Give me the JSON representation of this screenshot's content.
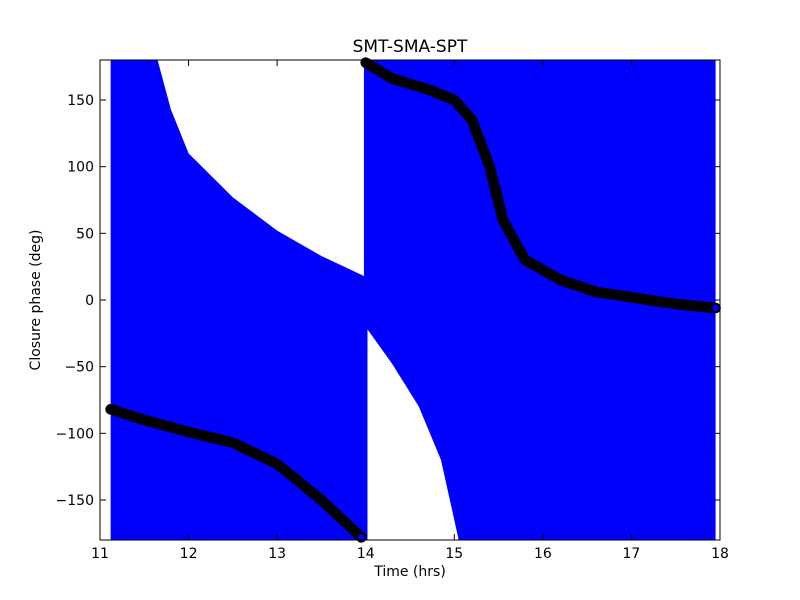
{
  "chart_data": {
    "type": "scatter",
    "title": "SMT-SMA-SPT",
    "xlabel": "Time (hrs)",
    "ylabel": "Closure phase (deg)",
    "xlim": [
      11,
      18
    ],
    "ylim": [
      -180,
      180
    ],
    "xticks": [
      11,
      12,
      13,
      14,
      15,
      16,
      17,
      18
    ],
    "yticks": [
      -150,
      -100,
      -50,
      0,
      50,
      100,
      150
    ],
    "grid": false,
    "legend": "none",
    "colors": {
      "errorbar": "#0000ff",
      "marker_edge": "#000000",
      "marker_fill": "#0000ff",
      "background": "#ffffff"
    },
    "series": [
      {
        "values": [
          {
            "x": 11.12,
            "y": -82
          },
          {
            "x": 11.5,
            "y": -90
          },
          {
            "x": 12.0,
            "y": -99
          },
          {
            "x": 12.5,
            "y": -107
          },
          {
            "x": 13.0,
            "y": -123
          },
          {
            "x": 13.5,
            "y": -150
          },
          {
            "x": 13.95,
            "y": -178
          },
          {
            "x": 14.0,
            "y": 178
          },
          {
            "x": 14.3,
            "y": 166
          },
          {
            "x": 14.7,
            "y": 158
          },
          {
            "x": 15.0,
            "y": 150
          },
          {
            "x": 15.2,
            "y": 135
          },
          {
            "x": 15.4,
            "y": 100
          },
          {
            "x": 15.55,
            "y": 60
          },
          {
            "x": 15.8,
            "y": 30
          },
          {
            "x": 16.2,
            "y": 15
          },
          {
            "x": 16.6,
            "y": 6
          },
          {
            "x": 17.0,
            "y": 2
          },
          {
            "x": 17.5,
            "y": -3
          },
          {
            "x": 17.95,
            "y": -6
          }
        ]
      }
    ],
    "uncertainty_gaps": [
      {
        "lower": [
          [
            11.65,
            180
          ],
          [
            11.8,
            143
          ],
          [
            12.0,
            110
          ],
          [
            12.5,
            77
          ],
          [
            13.0,
            52
          ],
          [
            13.5,
            33
          ],
          [
            13.98,
            18
          ]
        ]
      },
      {
        "upper": [
          [
            14.02,
            -22
          ],
          [
            14.3,
            -48
          ],
          [
            14.6,
            -80
          ],
          [
            14.85,
            -120
          ],
          [
            15.05,
            -180
          ]
        ]
      }
    ]
  }
}
